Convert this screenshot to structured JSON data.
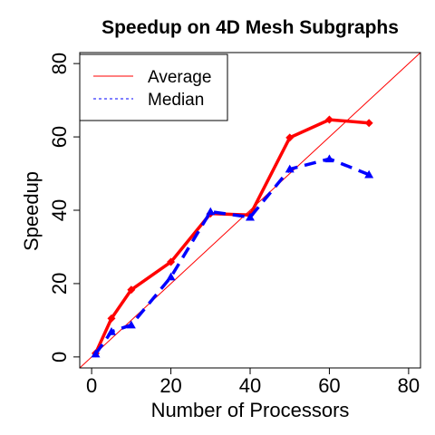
{
  "chart_data": {
    "type": "line",
    "title": "Speedup on 4D Mesh Subgraphs",
    "xlabel": "Number of Processors",
    "ylabel": "Speedup",
    "xlim": [
      -3,
      83
    ],
    "ylim": [
      -3,
      83
    ],
    "xticks": [
      "0",
      "20",
      "40",
      "60",
      "80"
    ],
    "yticks": [
      "0",
      "20",
      "40",
      "60",
      "80"
    ],
    "reference_line": "y = x",
    "legend": {
      "placement": "top-left"
    },
    "colors": {
      "average": "#ff0000",
      "median": "#0000ff",
      "reference": "#ff0000"
    },
    "series": [
      {
        "name": "Average",
        "style": "solid",
        "marker": "diamond",
        "color": "#ff0000",
        "x": [
          1,
          5,
          10,
          20,
          30,
          40,
          50,
          60,
          70
        ],
        "y": [
          1.0,
          10.5,
          18.3,
          25.9,
          39.1,
          38.7,
          59.8,
          64.7,
          63.8
        ]
      },
      {
        "name": "Median",
        "style": "dashed",
        "marker": "triangle",
        "color": "#0000ff",
        "x": [
          1,
          5,
          10,
          20,
          30,
          40,
          50,
          60,
          70
        ],
        "y": [
          0.8,
          6.9,
          8.7,
          21.8,
          39.6,
          38.1,
          51.2,
          54.0,
          49.7
        ]
      }
    ]
  }
}
